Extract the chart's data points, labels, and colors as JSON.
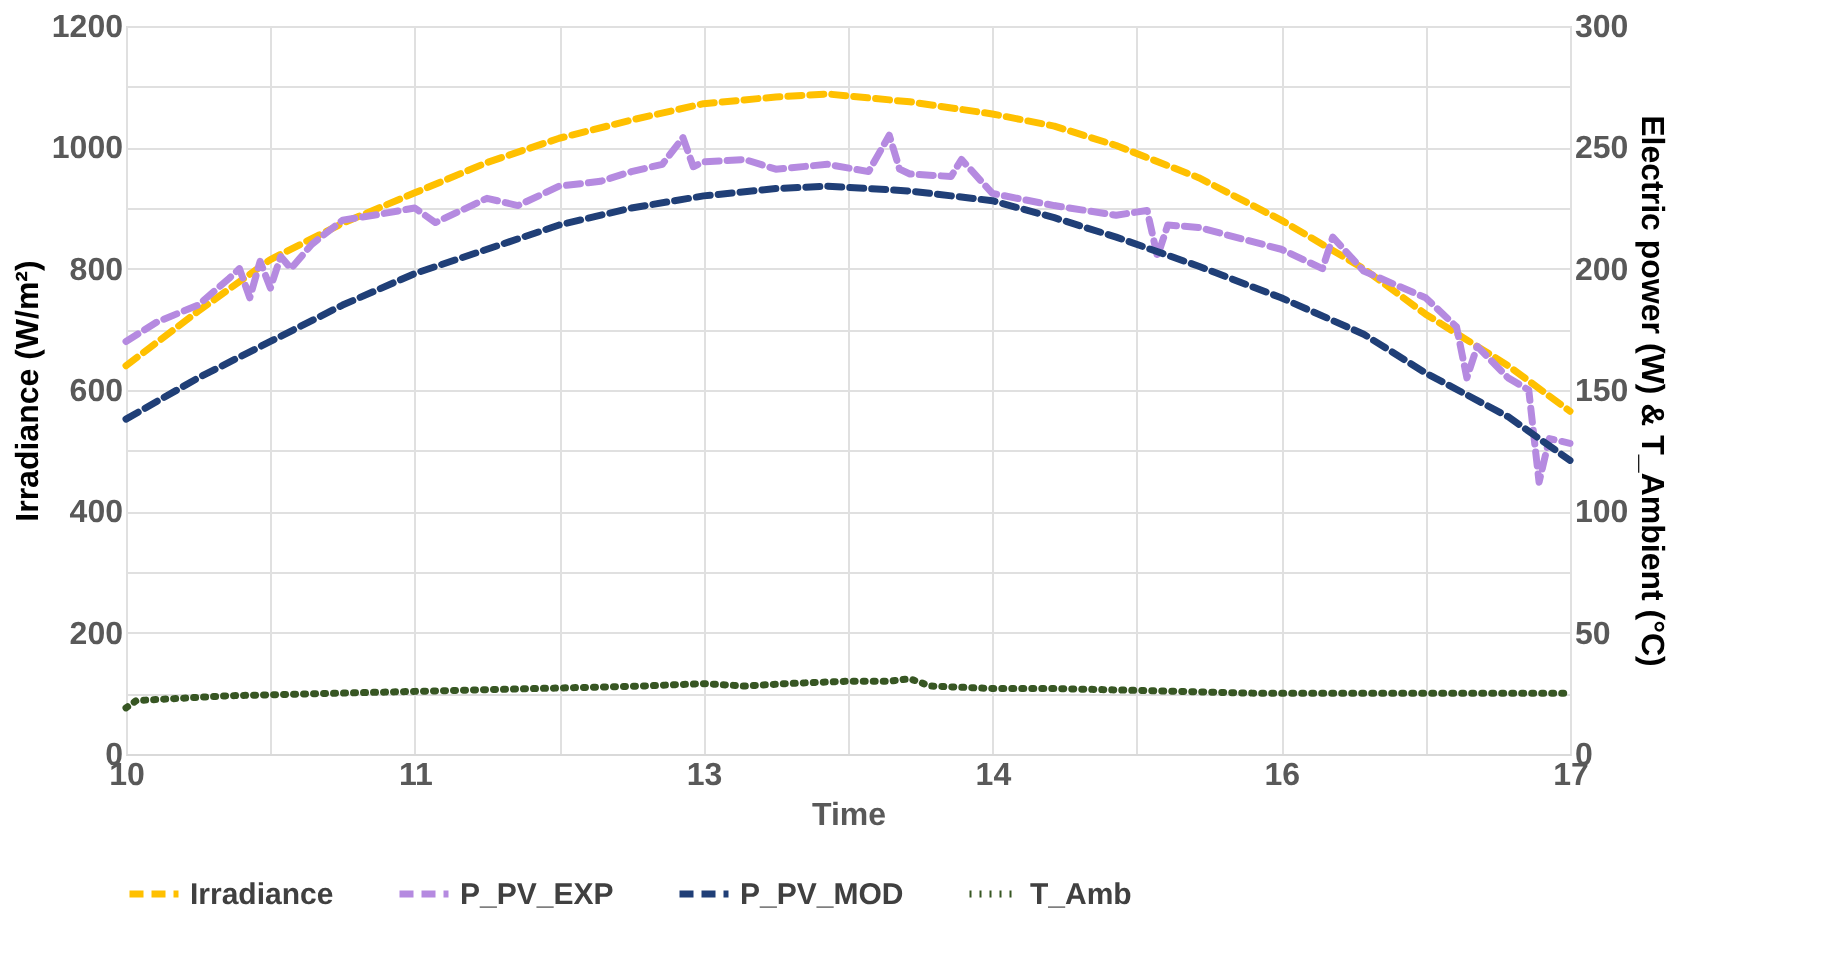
{
  "chart_data": {
    "type": "line",
    "xlabel": "Time",
    "ylabel": "Irradiance (W/m²)",
    "y2label": "Electric power (W) & T_Ambient (°C)",
    "xlim": [
      10,
      17
    ],
    "xticks": [
      10,
      {
        "value": 10.7,
        "label": null
      },
      {
        "value": 11.4,
        "label": "11"
      },
      {
        "value": 12.1,
        "label": null
      },
      {
        "value": 12.8,
        "label": "13"
      },
      {
        "value": 13.5,
        "label": null
      },
      {
        "value": 14.2,
        "label": "14"
      },
      {
        "value": 14.9,
        "label": null
      },
      {
        "value": 15.6,
        "label": "16"
      },
      {
        "value": 16.3,
        "label": null
      },
      17
    ],
    "ylim": [
      0,
      1200
    ],
    "yticks": [
      0,
      {
        "value": 100,
        "label": null
      },
      200,
      {
        "value": 300,
        "label": null
      },
      400,
      {
        "value": 500,
        "label": null
      },
      600,
      {
        "value": 700,
        "label": null
      },
      800,
      {
        "value": 900,
        "label": null
      },
      1000,
      {
        "value": 1100,
        "label": null
      },
      1200
    ],
    "y2lim": [
      0,
      300
    ],
    "y2ticks": [
      0,
      50,
      100,
      150,
      200,
      250,
      300
    ],
    "grid": true,
    "legend": "bottom",
    "series": [
      {
        "name": "Irradiance",
        "color": "#ffc000",
        "line_style": "dashed",
        "x": [
          10,
          10.35,
          10.7,
          11.05,
          11.4,
          11.75,
          12.1,
          12.45,
          12.8,
          13.15,
          13.4,
          13.8,
          14.2,
          14.5,
          14.8,
          15.2,
          15.6,
          16,
          16.3,
          16.7,
          17
        ],
        "values": [
          640,
          730,
          815,
          875,
          925,
          975,
          1015,
          1045,
          1072,
          1083,
          1088,
          1075,
          1055,
          1035,
          1003,
          950,
          880,
          800,
          725,
          640,
          565
        ]
      },
      {
        "name": "P_PV_EXP",
        "color": "#b58ae0",
        "line_style": "dashed",
        "axis": "y2",
        "x": [
          10,
          10.15,
          10.35,
          10.5,
          10.55,
          10.6,
          10.65,
          10.7,
          10.75,
          10.8,
          10.9,
          11.05,
          11.2,
          11.4,
          11.5,
          11.75,
          11.9,
          12.1,
          12.3,
          12.45,
          12.6,
          12.7,
          12.75,
          12.8,
          13.0,
          13.15,
          13.4,
          13.6,
          13.7,
          13.75,
          13.8,
          14.0,
          14.05,
          14.2,
          14.5,
          14.8,
          14.95,
          15.0,
          15.05,
          15.2,
          15.6,
          15.8,
          15.85,
          16.0,
          16.3,
          16.45,
          16.5,
          16.55,
          16.7,
          16.8,
          16.85,
          16.9,
          17
        ],
        "values": [
          170,
          178,
          185,
          196,
          200,
          188,
          203,
          192,
          205,
          200,
          210,
          220,
          222,
          225,
          219,
          229,
          226,
          234,
          236,
          240,
          243,
          254,
          242,
          244,
          245,
          241,
          243,
          240,
          255,
          241,
          239,
          238,
          245,
          231,
          226,
          222,
          224,
          205,
          218,
          217,
          208,
          200,
          213,
          199,
          188,
          176,
          155,
          168,
          155,
          150,
          112,
          130,
          128
        ]
      },
      {
        "name": "P_PV_MOD",
        "color": "#203f77",
        "line_style": "dashed",
        "axis": "y2",
        "x": [
          10,
          10.35,
          10.7,
          11.05,
          11.4,
          11.75,
          12.1,
          12.45,
          12.8,
          13.15,
          13.4,
          13.8,
          14.2,
          14.5,
          14.8,
          15.2,
          15.6,
          16,
          16.3,
          16.7,
          17
        ],
        "values": [
          138,
          155,
          170,
          185,
          198,
          208,
          218,
          225,
          230,
          233,
          234,
          232,
          228,
          221,
          213,
          201,
          188,
          173,
          157,
          139,
          121
        ]
      },
      {
        "name": "T_Amb",
        "color": "#375623",
        "line_style": "dotted",
        "axis": "y2",
        "x": [
          10,
          10.05,
          10.5,
          11,
          11.5,
          12,
          12.5,
          12.8,
          13,
          13.2,
          13.5,
          13.7,
          13.8,
          13.9,
          14.2,
          14.5,
          15,
          15.5,
          16,
          16.5,
          17
        ],
        "values": [
          19,
          22,
          24,
          25,
          26,
          27,
          28,
          29,
          28,
          29,
          30,
          30,
          31,
          28,
          27,
          27,
          26,
          25,
          25,
          25,
          25
        ]
      }
    ]
  }
}
